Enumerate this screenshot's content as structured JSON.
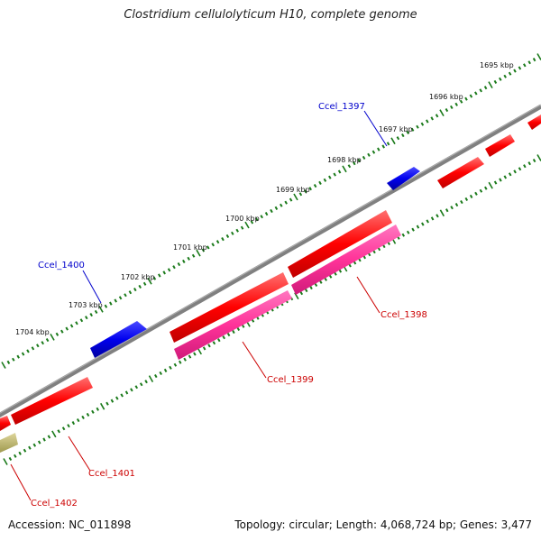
{
  "title": "Clostridium cellulolyticum H10, complete genome",
  "accession": "Accession: NC_011898",
  "summary": "Topology: circular; Length: 4,068,724 bp; Genes: 3,477",
  "scale_labels": [
    "1695 kbp",
    "1696 kbp",
    "1697 kbp",
    "1698 kbp",
    "1699 kbp",
    "1700 kbp",
    "1701 kbp",
    "1702 kbp",
    "1703 kbp",
    "1704 kbp"
  ],
  "gene_labels": {
    "ccel_1397": "Ccel_1397",
    "ccel_1398": "Ccel_1398",
    "ccel_1399": "Ccel_1399",
    "ccel_1400": "Ccel_1400",
    "ccel_1401": "Ccel_1401",
    "ccel_1402": "Ccel_1402"
  },
  "colors": {
    "backbone": "#808080",
    "forward_gene": "#ff0000",
    "reverse_gene": "#0000ff",
    "pink_feature": "#ff3399",
    "olive_feature": "#bdb76b",
    "tick": "#1a7a1a"
  }
}
